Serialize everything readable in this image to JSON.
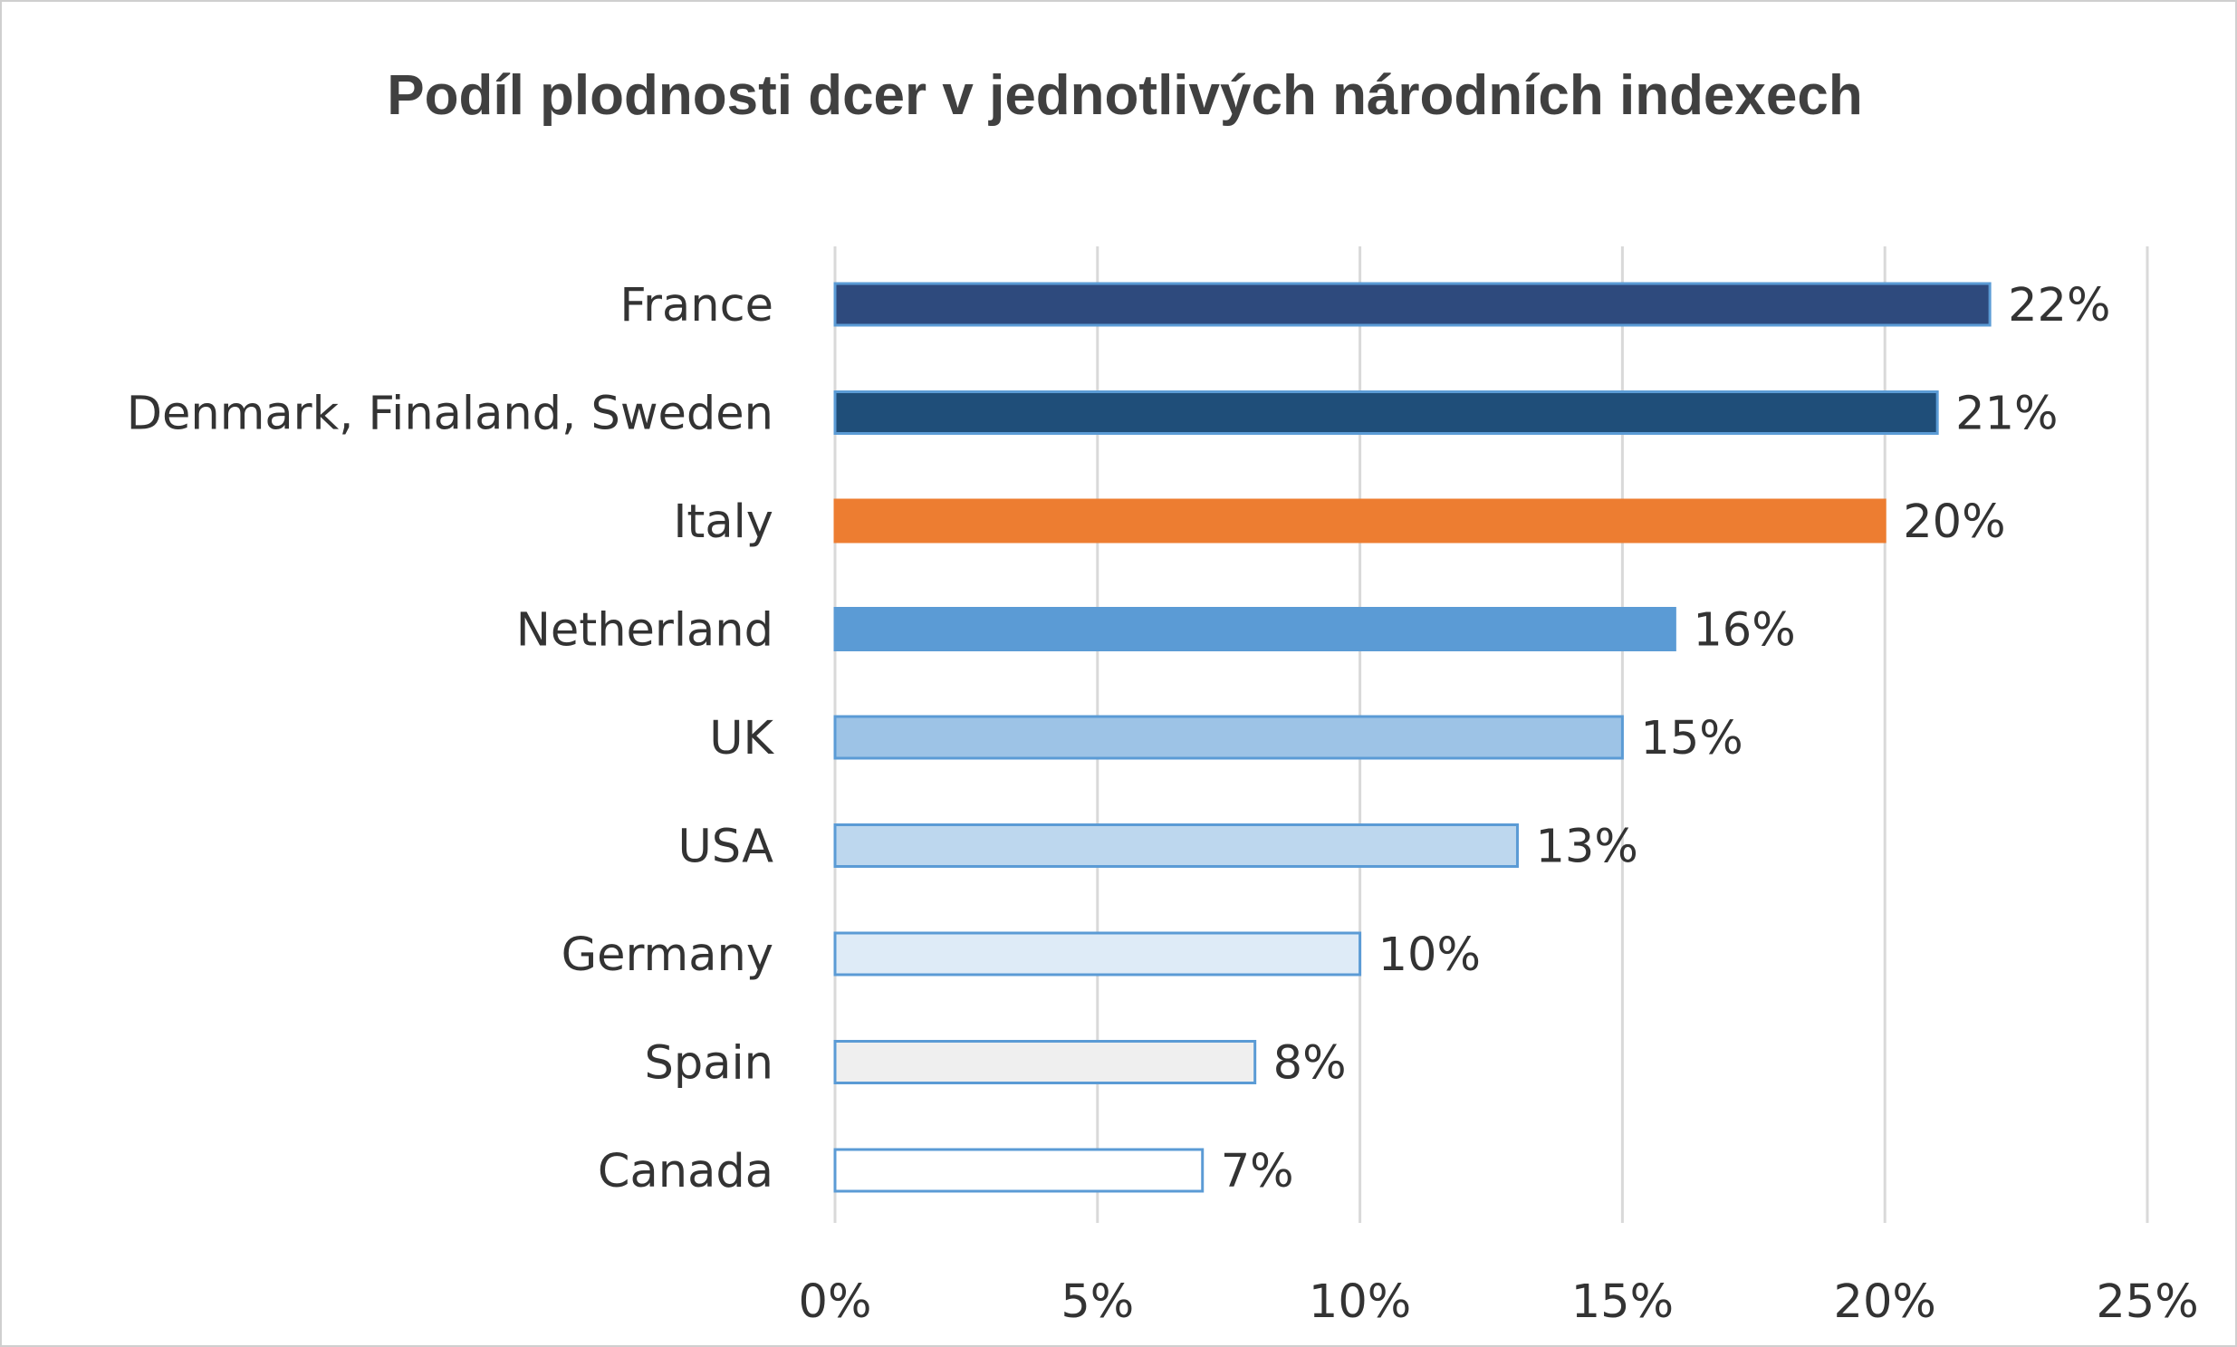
{
  "chart_data": {
    "type": "bar",
    "orientation": "horizontal",
    "title": "Podíl plodnosti dcer v jednotlivých národních indexech",
    "categories": [
      "France",
      "Denmark, Finaland, Sweden",
      "Italy",
      "Netherland",
      "UK",
      "USA",
      "Germany",
      "Spain",
      "Canada"
    ],
    "values": [
      22,
      21,
      20,
      16,
      15,
      13,
      10,
      8,
      7
    ],
    "data_labels": [
      "22%",
      "21%",
      "20%",
      "16%",
      "15%",
      "13%",
      "10%",
      "8%",
      "7%"
    ],
    "bar_fills": [
      "#2e4a7d",
      "#1f4e79",
      "#ed7d31",
      "#5b9bd5",
      "#9dc3e6",
      "#bdd7ee",
      "#deebf7",
      "#efefef",
      "#ffffff"
    ],
    "bar_borders": [
      "#5b9bd5",
      "#5b9bd5",
      "#ed7d31",
      "#5b9bd5",
      "#5b9bd5",
      "#5b9bd5",
      "#5b9bd5",
      "#5b9bd5",
      "#5b9bd5"
    ],
    "xlim": [
      0,
      25
    ],
    "xticks": [
      0,
      5,
      10,
      15,
      20,
      25
    ],
    "xtick_labels": [
      "0%",
      "5%",
      "10%",
      "15%",
      "20%",
      "25%"
    ],
    "grid": true,
    "legend": "none"
  }
}
